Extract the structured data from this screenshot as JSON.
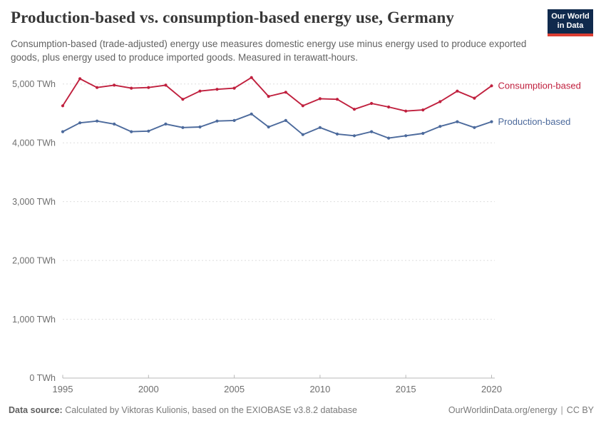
{
  "header": {
    "title": "Production-based vs. consumption-based energy use, Germany",
    "subtitle": "Consumption-based (trade-adjusted) energy use measures domestic energy use minus energy used to produce exported goods, plus energy used to produce imported goods. Measured in terawatt-hours.",
    "logo": {
      "line1": "Our World",
      "line2": "in Data",
      "bg_color": "#102a4d",
      "bar_color": "#dc3e32"
    }
  },
  "chart_data": {
    "type": "line",
    "title": "Production-based vs. consumption-based energy use, Germany",
    "unit": "TWh",
    "x": [
      1995,
      1996,
      1997,
      1998,
      1999,
      2000,
      2001,
      2002,
      2003,
      2004,
      2005,
      2006,
      2007,
      2008,
      2009,
      2010,
      2011,
      2012,
      2013,
      2014,
      2015,
      2016,
      2017,
      2018,
      2019,
      2020
    ],
    "series": [
      {
        "name": "Production-based",
        "color": "#4c6a9c",
        "values": [
          4190,
          4340,
          4370,
          4320,
          4190,
          4200,
          4320,
          4260,
          4270,
          4370,
          4380,
          4490,
          4270,
          4380,
          4140,
          4260,
          4150,
          4120,
          4190,
          4080,
          4120,
          4160,
          4280,
          4360,
          4260,
          4360
        ]
      },
      {
        "name": "Consumption-based",
        "color": "#c0203e",
        "values": [
          4630,
          5090,
          4940,
          4980,
          4930,
          4940,
          4980,
          4740,
          4880,
          4910,
          4930,
          5110,
          4790,
          4860,
          4630,
          4750,
          4740,
          4570,
          4670,
          4610,
          4540,
          4560,
          4700,
          4880,
          4760,
          4970
        ]
      }
    ],
    "xticks": [
      1995,
      2000,
      2005,
      2010,
      2015,
      2020
    ],
    "yticks": [
      0,
      1000,
      2000,
      3000,
      4000,
      5000
    ],
    "ytick_labels": [
      "0 TWh",
      "1,000 TWh",
      "2,000 TWh",
      "3,000 TWh",
      "4,000 TWh",
      "5,000 TWh"
    ],
    "xlim": [
      1995,
      2020
    ],
    "ylim": [
      0,
      5000
    ],
    "grid": "horizontal-dashed",
    "legend_position": "end-of-line-labels"
  },
  "footer": {
    "source_label": "Data source:",
    "source_text": "Calculated by Viktoras Kulionis, based on the EXIOBASE v3.8.2 database",
    "link": "OurWorldinData.org/energy",
    "separator": "|",
    "license": "CC BY"
  }
}
